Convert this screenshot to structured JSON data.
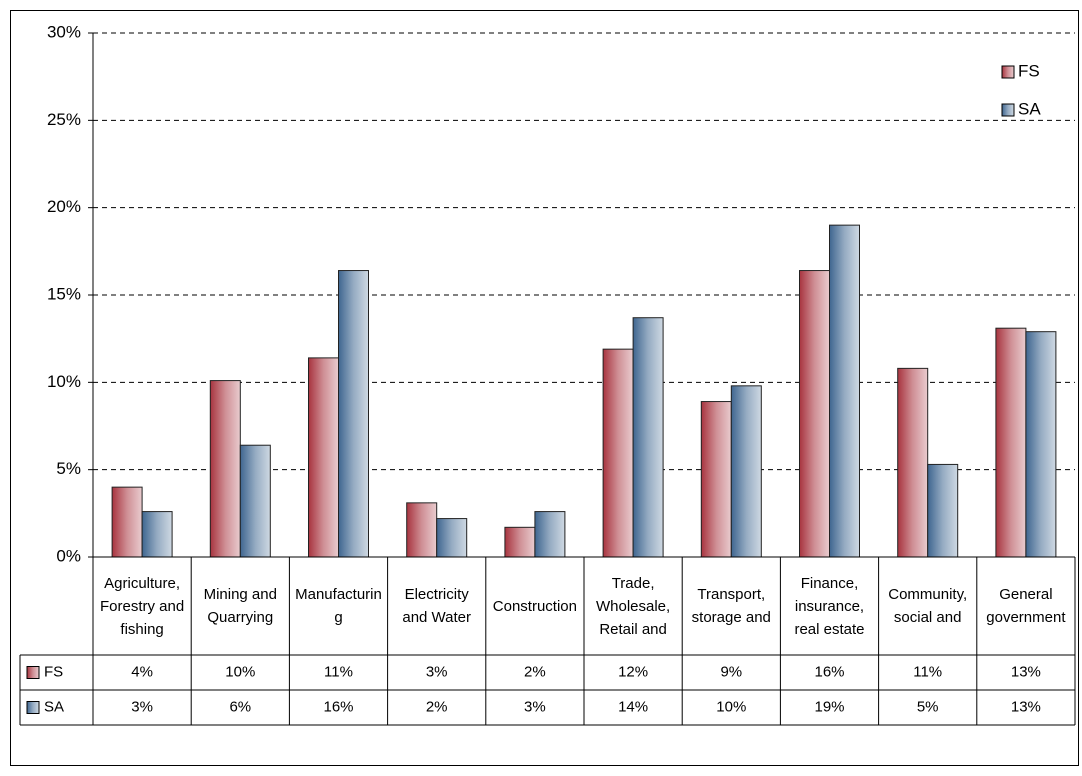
{
  "chart_data": {
    "type": "bar",
    "categories": [
      "Agriculture, Forestry and fishing",
      "Mining and Quarrying",
      "Manufacturing",
      "Electricity and Water",
      "Construction",
      "Trade, Wholesale, Retail and",
      "Transport, storage and",
      "Finance, insurance, real estate",
      "Community, social and",
      "General government"
    ],
    "series": [
      {
        "name": "FS",
        "color": "#a8343f",
        "values": [
          4.0,
          10.1,
          11.4,
          3.1,
          1.7,
          11.9,
          8.9,
          16.4,
          10.8,
          13.1
        ],
        "value_labels": [
          "4%",
          "10%",
          "11%",
          "3%",
          "2%",
          "12%",
          "9%",
          "16%",
          "11%",
          "13%"
        ]
      },
      {
        "name": "SA",
        "color": "#3f6690",
        "values": [
          2.6,
          6.4,
          16.4,
          2.2,
          2.6,
          13.7,
          9.8,
          19.0,
          5.3,
          12.9
        ],
        "value_labels": [
          "3%",
          "6%",
          "16%",
          "2%",
          "3%",
          "14%",
          "10%",
          "19%",
          "5%",
          "13%"
        ]
      }
    ],
    "ylim": [
      0,
      30
    ],
    "yticks": [
      {
        "value": 0,
        "label": "0%"
      },
      {
        "value": 5,
        "label": "5%"
      },
      {
        "value": 10,
        "label": "10%"
      },
      {
        "value": 15,
        "label": "15%"
      },
      {
        "value": 20,
        "label": "20%"
      },
      {
        "value": 25,
        "label": "25%"
      },
      {
        "value": 30,
        "label": "30%"
      }
    ],
    "grid": true,
    "legend": "top-right"
  }
}
